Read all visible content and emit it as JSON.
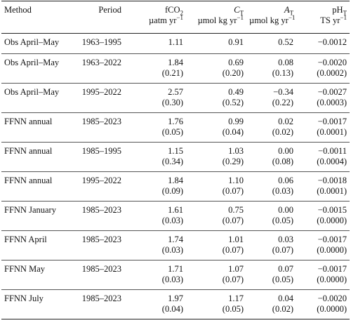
{
  "table": {
    "header": [
      {
        "l1": "Method"
      },
      {
        "l1": "Period"
      },
      {
        "l1": "fCO",
        "l1sub": "2",
        "l2": "µatm yr",
        "l2sup": "−1"
      },
      {
        "l1": "C",
        "l1sub": "T",
        "l2": "µmol kg yr",
        "l2sup": "−1"
      },
      {
        "l1": "A",
        "l1sub": "T",
        "l2": "µmol kg yr",
        "l2sup": "−1"
      },
      {
        "l1": "pH",
        "l1sub": "T",
        "l2": "TS yr",
        "l2sup": "−1"
      }
    ],
    "rows": [
      {
        "method": "Obs April–May",
        "period": "1963–1995",
        "values": [
          "1.11",
          "0.91",
          "0.52",
          "−0.0012"
        ]
      },
      {
        "method": "Obs April–May",
        "period": "1963–2022",
        "values": [
          "1.84",
          "0.69",
          "0.08",
          "−0.0020"
        ],
        "errors": [
          "(0.21)",
          "(0.20)",
          "(0.13)",
          "(0.0002)"
        ]
      },
      {
        "method": "Obs April–May",
        "period": "1995–2022",
        "values": [
          "2.57",
          "0.49",
          "−0.34",
          "−0.0027"
        ],
        "errors": [
          "(0.30)",
          "(0.52)",
          "(0.22)",
          "(0.0003)"
        ]
      },
      {
        "method": "FFNN annual",
        "period": "1985–2023",
        "values": [
          "1.76",
          "0.99",
          "0.02",
          "−0.0017"
        ],
        "errors": [
          "(0.05)",
          "(0.04)",
          "(0.02)",
          "(0.0001)"
        ]
      },
      {
        "method": "FFNN annual",
        "period": "1985–1995",
        "values": [
          "1.15",
          "1.03",
          "0.00",
          "−0.0011"
        ],
        "errors": [
          "(0.34)",
          "(0.29)",
          "(0.08)",
          "(0.0004)"
        ]
      },
      {
        "method": "FFNN annual",
        "period": "1995–2022",
        "values": [
          "1.84",
          "1.10",
          "0.06",
          "−0.0018"
        ],
        "errors": [
          "(0.09)",
          "(0.07)",
          "(0.03)",
          "(0.0001)"
        ]
      },
      {
        "method": "FFNN January",
        "period": "1985–2023",
        "values": [
          "1.61",
          "0.75",
          "0.00",
          "−0.0015"
        ],
        "errors": [
          "(0.03)",
          "(0.07)",
          "(0.05)",
          "(0.0000)"
        ]
      },
      {
        "method": "FFNN April",
        "period": "1985–2023",
        "values": [
          "1.74",
          "1.01",
          "0.03",
          "−0.0017"
        ],
        "errors": [
          "(0.03)",
          "(0.07)",
          "(0.07)",
          "(0.0000)"
        ]
      },
      {
        "method": "FFNN May",
        "period": "1985–2023",
        "values": [
          "1.71",
          "1.07",
          "0.07",
          "−0.0017"
        ],
        "errors": [
          "(0.03)",
          "(0.07)",
          "(0.05)",
          "(0.0000)"
        ]
      },
      {
        "method": "FFNN July",
        "period": "1985–2023",
        "values": [
          "1.97",
          "1.17",
          "0.04",
          "−0.0020"
        ],
        "errors": [
          "(0.04)",
          "(0.05)",
          "(0.02)",
          "(0.0000)"
        ]
      }
    ]
  }
}
